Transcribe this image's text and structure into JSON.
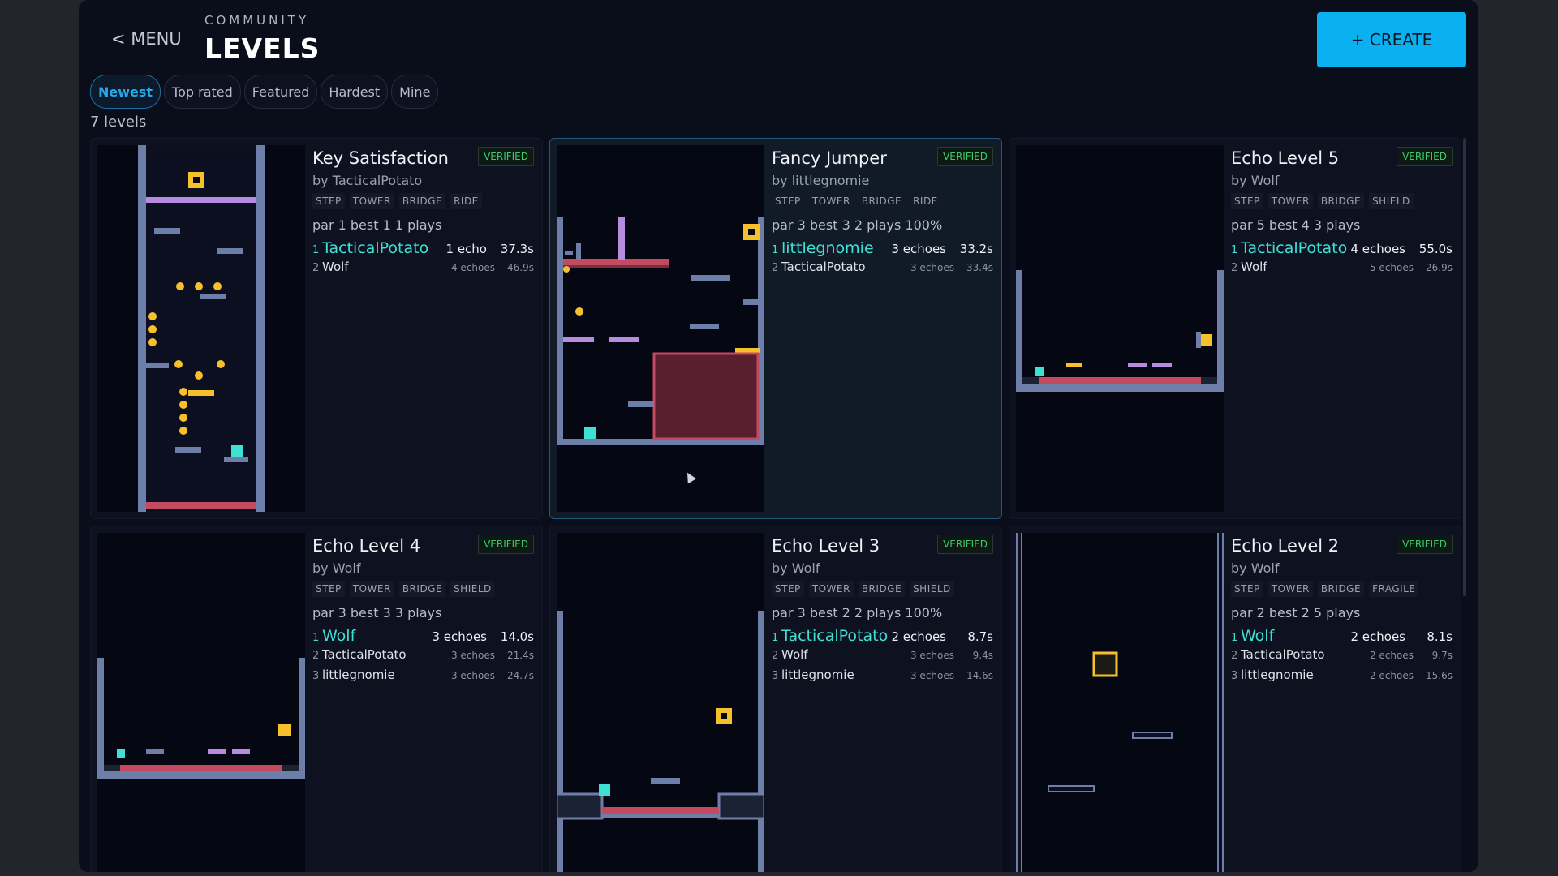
{
  "header": {
    "menu_label": "< MENU",
    "kicker": "COMMUNITY",
    "title": "LEVELS",
    "create_label": "+ CREATE"
  },
  "filters": {
    "tabs": [
      "Newest",
      "Top rated",
      "Featured",
      "Hardest",
      "Mine"
    ],
    "active": "Newest"
  },
  "level_count": "7 levels",
  "colors": {
    "accent": "#0ab0f0",
    "verified": "#3fc86a",
    "leader": "#3fe0d4",
    "wall": "#6d7fa8",
    "hazard": "#c44a60",
    "coin": "#f5c02a",
    "platform": "#b68be0"
  },
  "levels": [
    {
      "name": "Key Satisfaction",
      "badge": "VERIFIED",
      "author": "by TacticalPotato",
      "tags": [
        "STEP",
        "TOWER",
        "BRIDGE",
        "RIDE"
      ],
      "stats": "par 1  best 1  1 plays",
      "leaderboard": [
        {
          "rank": "1",
          "player": "TacticalPotato",
          "echoes": "1 echo",
          "time": "37.3s"
        },
        {
          "rank": "2",
          "player": "Wolf",
          "echoes": "4 echoes",
          "time": "46.9s"
        }
      ]
    },
    {
      "name": "Fancy Jumper",
      "badge": "VERIFIED",
      "author": "by littlegnomie",
      "tags": [
        "STEP",
        "TOWER",
        "BRIDGE",
        "RIDE"
      ],
      "stats": "par 3  best 3  2 plays  100%",
      "leaderboard": [
        {
          "rank": "1",
          "player": "littlegnomie",
          "echoes": "3 echoes",
          "time": "33.2s"
        },
        {
          "rank": "2",
          "player": "TacticalPotato",
          "echoes": "3 echoes",
          "time": "33.4s"
        }
      ]
    },
    {
      "name": "Echo Level 5",
      "badge": "VERIFIED",
      "author": "by Wolf",
      "tags": [
        "STEP",
        "TOWER",
        "BRIDGE",
        "SHIELD"
      ],
      "stats": "par 5  best 4  3 plays",
      "leaderboard": [
        {
          "rank": "1",
          "player": "TacticalPotato",
          "echoes": "4 echoes",
          "time": "55.0s"
        },
        {
          "rank": "2",
          "player": "Wolf",
          "echoes": "5 echoes",
          "time": "26.9s"
        }
      ]
    },
    {
      "name": "Echo Level 4",
      "badge": "VERIFIED",
      "author": "by Wolf",
      "tags": [
        "STEP",
        "TOWER",
        "BRIDGE",
        "SHIELD"
      ],
      "stats": "par 3  best 3  3 plays",
      "leaderboard": [
        {
          "rank": "1",
          "player": "Wolf",
          "echoes": "3 echoes",
          "time": "14.0s"
        },
        {
          "rank": "2",
          "player": "TacticalPotato",
          "echoes": "3 echoes",
          "time": "21.4s"
        },
        {
          "rank": "3",
          "player": "littlegnomie",
          "echoes": "3 echoes",
          "time": "24.7s"
        }
      ]
    },
    {
      "name": "Echo Level 3",
      "badge": "VERIFIED",
      "author": "by Wolf",
      "tags": [
        "STEP",
        "TOWER",
        "BRIDGE",
        "SHIELD"
      ],
      "stats": "par 3  best 2  2 plays  100%",
      "leaderboard": [
        {
          "rank": "1",
          "player": "TacticalPotato",
          "echoes": "2 echoes",
          "time": "8.7s"
        },
        {
          "rank": "2",
          "player": "Wolf",
          "echoes": "3 echoes",
          "time": "9.4s"
        },
        {
          "rank": "3",
          "player": "littlegnomie",
          "echoes": "3 echoes",
          "time": "14.6s"
        }
      ]
    },
    {
      "name": "Echo Level 2",
      "badge": "VERIFIED",
      "author": "by Wolf",
      "tags": [
        "STEP",
        "TOWER",
        "BRIDGE",
        "FRAGILE"
      ],
      "stats": "par 2  best 2  5 plays",
      "leaderboard": [
        {
          "rank": "1",
          "player": "Wolf",
          "echoes": "2 echoes",
          "time": "8.1s"
        },
        {
          "rank": "2",
          "player": "TacticalPotato",
          "echoes": "2 echoes",
          "time": "9.7s"
        },
        {
          "rank": "3",
          "player": "littlegnomie",
          "echoes": "2 echoes",
          "time": "15.6s"
        }
      ]
    }
  ]
}
